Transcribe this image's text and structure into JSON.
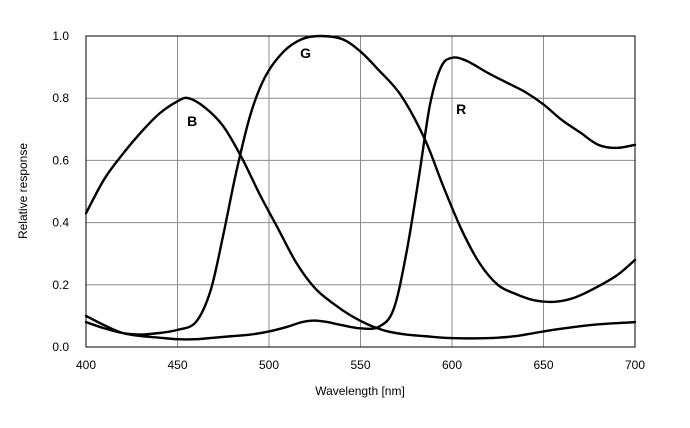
{
  "chart_data": {
    "type": "line",
    "title": "",
    "xlabel": "Wavelength [nm]",
    "ylabel": "Relative response",
    "xlim": [
      400,
      700
    ],
    "ylim": [
      0,
      1.0
    ],
    "x_ticks": [
      "400",
      "450",
      "500",
      "550",
      "600",
      "650",
      "700"
    ],
    "y_ticks": [
      "0.0",
      "0.2",
      "0.4",
      "0.6",
      "0.8",
      "1.0"
    ],
    "grid": true,
    "legend": "none",
    "line_color": "#000000",
    "series": [
      {
        "name": "B",
        "label_at": [
          458,
          0.71
        ],
        "points": [
          [
            400,
            0.43
          ],
          [
            410,
            0.54
          ],
          [
            420,
            0.62
          ],
          [
            430,
            0.69
          ],
          [
            440,
            0.75
          ],
          [
            450,
            0.79
          ],
          [
            456,
            0.8
          ],
          [
            465,
            0.77
          ],
          [
            475,
            0.71
          ],
          [
            485,
            0.61
          ],
          [
            495,
            0.49
          ],
          [
            505,
            0.38
          ],
          [
            515,
            0.27
          ],
          [
            525,
            0.19
          ],
          [
            535,
            0.14
          ],
          [
            545,
            0.1
          ],
          [
            555,
            0.07
          ],
          [
            565,
            0.05
          ],
          [
            575,
            0.04
          ],
          [
            585,
            0.035
          ],
          [
            595,
            0.03
          ],
          [
            605,
            0.028
          ],
          [
            615,
            0.028
          ],
          [
            625,
            0.03
          ],
          [
            635,
            0.035
          ],
          [
            645,
            0.045
          ],
          [
            655,
            0.055
          ],
          [
            665,
            0.063
          ],
          [
            675,
            0.07
          ],
          [
            685,
            0.075
          ],
          [
            700,
            0.08
          ]
        ]
      },
      {
        "name": "G",
        "label_at": [
          520,
          0.93
        ],
        "points": [
          [
            400,
            0.08
          ],
          [
            410,
            0.06
          ],
          [
            420,
            0.045
          ],
          [
            430,
            0.04
          ],
          [
            440,
            0.045
          ],
          [
            450,
            0.055
          ],
          [
            460,
            0.08
          ],
          [
            468,
            0.18
          ],
          [
            475,
            0.36
          ],
          [
            482,
            0.56
          ],
          [
            490,
            0.75
          ],
          [
            498,
            0.87
          ],
          [
            508,
            0.95
          ],
          [
            518,
            0.99
          ],
          [
            528,
            1.0
          ],
          [
            540,
            0.99
          ],
          [
            550,
            0.95
          ],
          [
            560,
            0.89
          ],
          [
            572,
            0.81
          ],
          [
            585,
            0.67
          ],
          [
            595,
            0.52
          ],
          [
            605,
            0.38
          ],
          [
            615,
            0.27
          ],
          [
            625,
            0.2
          ],
          [
            635,
            0.17
          ],
          [
            645,
            0.15
          ],
          [
            655,
            0.145
          ],
          [
            665,
            0.155
          ],
          [
            675,
            0.18
          ],
          [
            690,
            0.23
          ],
          [
            700,
            0.28
          ]
        ]
      },
      {
        "name": "R",
        "label_at": [
          605,
          0.75
        ],
        "points": [
          [
            400,
            0.1
          ],
          [
            410,
            0.07
          ],
          [
            420,
            0.045
          ],
          [
            430,
            0.035
          ],
          [
            440,
            0.03
          ],
          [
            450,
            0.025
          ],
          [
            460,
            0.025
          ],
          [
            470,
            0.03
          ],
          [
            480,
            0.035
          ],
          [
            490,
            0.04
          ],
          [
            500,
            0.05
          ],
          [
            510,
            0.065
          ],
          [
            518,
            0.08
          ],
          [
            525,
            0.085
          ],
          [
            532,
            0.08
          ],
          [
            540,
            0.07
          ],
          [
            550,
            0.06
          ],
          [
            560,
            0.065
          ],
          [
            568,
            0.12
          ],
          [
            575,
            0.3
          ],
          [
            582,
            0.55
          ],
          [
            588,
            0.78
          ],
          [
            594,
            0.9
          ],
          [
            600,
            0.93
          ],
          [
            608,
            0.92
          ],
          [
            620,
            0.88
          ],
          [
            630,
            0.85
          ],
          [
            640,
            0.82
          ],
          [
            650,
            0.78
          ],
          [
            660,
            0.73
          ],
          [
            670,
            0.69
          ],
          [
            680,
            0.65
          ],
          [
            690,
            0.64
          ],
          [
            700,
            0.65
          ]
        ]
      }
    ]
  }
}
